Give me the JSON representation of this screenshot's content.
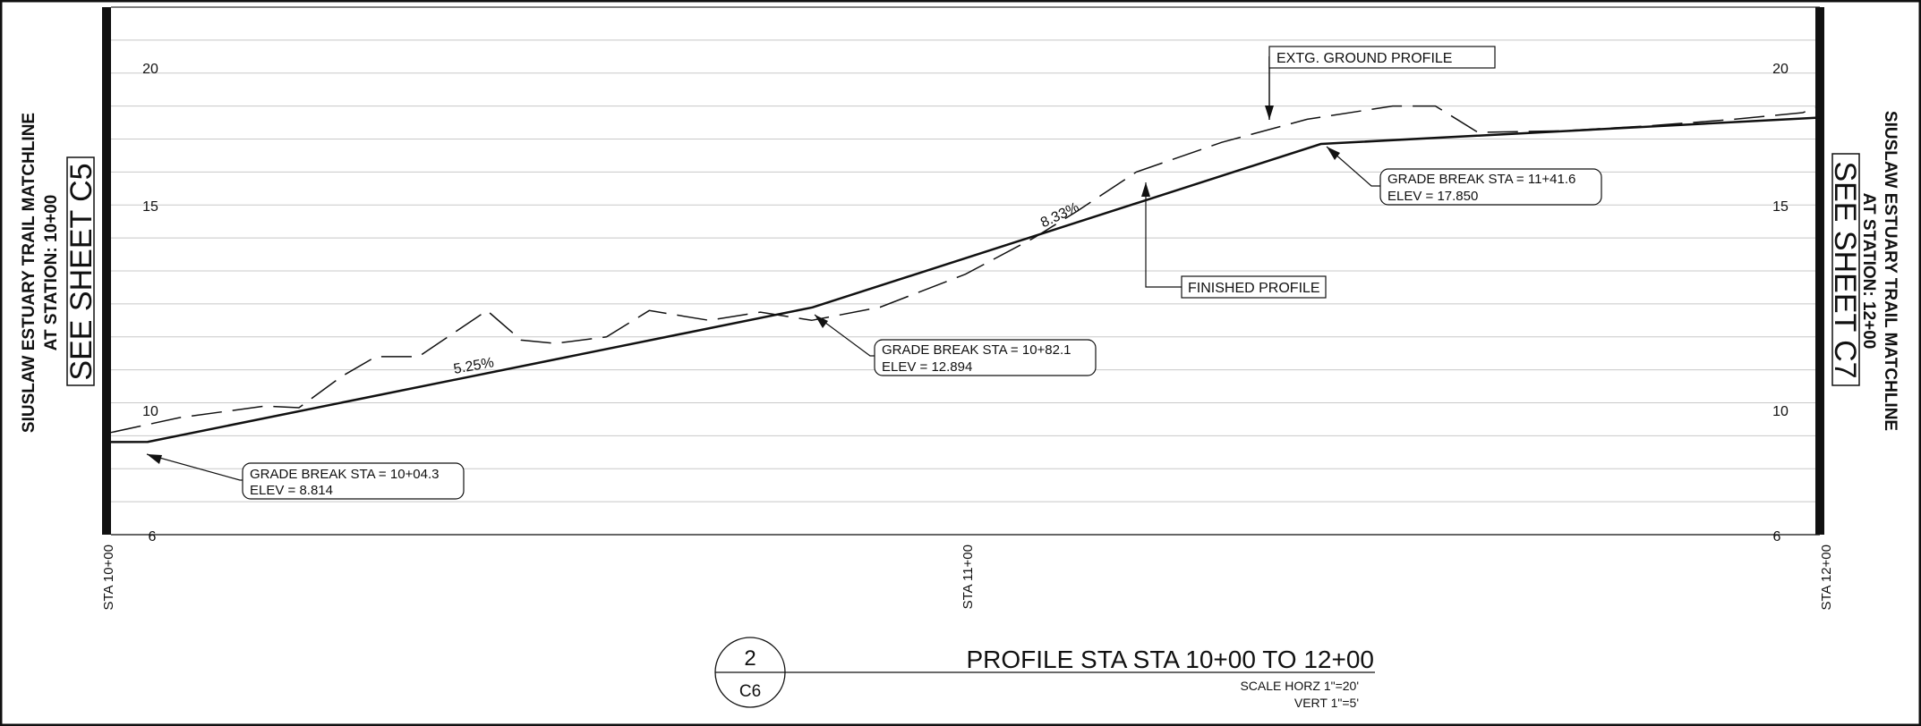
{
  "left_match": {
    "line1": "SIUSLAW ESTUARY TRAIL MATCHLINE",
    "line2": "AT STATION: 10+00",
    "see_sheet": "SEE SHEET C5"
  },
  "right_match": {
    "line1": "SIUSLAW ESTUARY TRAIL MATCHLINE",
    "line2": "AT STATION: 12+00",
    "see_sheet": "SEE SHEET C7"
  },
  "axis": {
    "elev_ticks_left": [
      "20",
      "15",
      "10",
      "6"
    ],
    "elev_ticks_right": [
      "20",
      "15",
      "10",
      "6"
    ],
    "station_labels": [
      "STA 10+00",
      "STA 11+00",
      "STA 12+00"
    ]
  },
  "callouts": {
    "existing_ground": "EXTG. GROUND PROFILE",
    "finished": "FINISHED PROFILE",
    "gb1_line1": "GRADE BREAK STA = 10+04.3",
    "gb1_line2": "ELEV =  8.814",
    "gb2_line1": "GRADE BREAK STA = 10+82.1",
    "gb2_line2": "ELEV =  12.894",
    "gb3_line1": "GRADE BREAK STA = 11+41.6",
    "gb3_line2": "ELEV =  17.850"
  },
  "slopes": {
    "s1": "5.25%",
    "s2": "8.33%"
  },
  "title_block": {
    "number": "2",
    "sheet": "C6",
    "title": "PROFILE STA STA 10+00 TO 12+00",
    "scale_horz": "SCALE HORZ 1\"=20'",
    "scale_vert": "VERT 1\"=5'"
  },
  "chart_data": {
    "type": "line",
    "x_unit": "station (ft)",
    "xlim": [
      1000,
      1200
    ],
    "ylim": [
      6,
      22
    ],
    "series": [
      {
        "points": [
          [
            1000,
            8.81
          ],
          [
            1004.3,
            8.814
          ],
          [
            1082.1,
            12.894
          ],
          [
            1141.6,
            17.85
          ],
          [
            1200,
            18.65
          ]
        ]
      },
      {
        "points": [
          [
            1000,
            9.1
          ],
          [
            1008,
            9.55
          ],
          [
            1018,
            9.9
          ],
          [
            1022,
            9.85
          ],
          [
            1027,
            10.8
          ],
          [
            1031,
            11.4
          ],
          [
            1036,
            11.4
          ],
          [
            1044,
            12.8
          ],
          [
            1048,
            11.9
          ],
          [
            1052,
            11.8
          ],
          [
            1058,
            12.0
          ],
          [
            1063,
            12.8
          ],
          [
            1070,
            12.5
          ],
          [
            1076,
            12.75
          ],
          [
            1082,
            12.5
          ],
          [
            1090,
            12.9
          ],
          [
            1100,
            13.9
          ],
          [
            1108,
            15.0
          ],
          [
            1113,
            15.8
          ],
          [
            1120,
            17.0
          ],
          [
            1130,
            17.9
          ],
          [
            1140,
            18.6
          ],
          [
            1150,
            19.0
          ],
          [
            1155,
            19.0
          ],
          [
            1160,
            18.2
          ],
          [
            1170,
            18.25
          ],
          [
            1180,
            18.4
          ],
          [
            1190,
            18.6
          ],
          [
            1198,
            18.8
          ],
          [
            1200,
            19.0
          ]
        ]
      }
    ]
  }
}
